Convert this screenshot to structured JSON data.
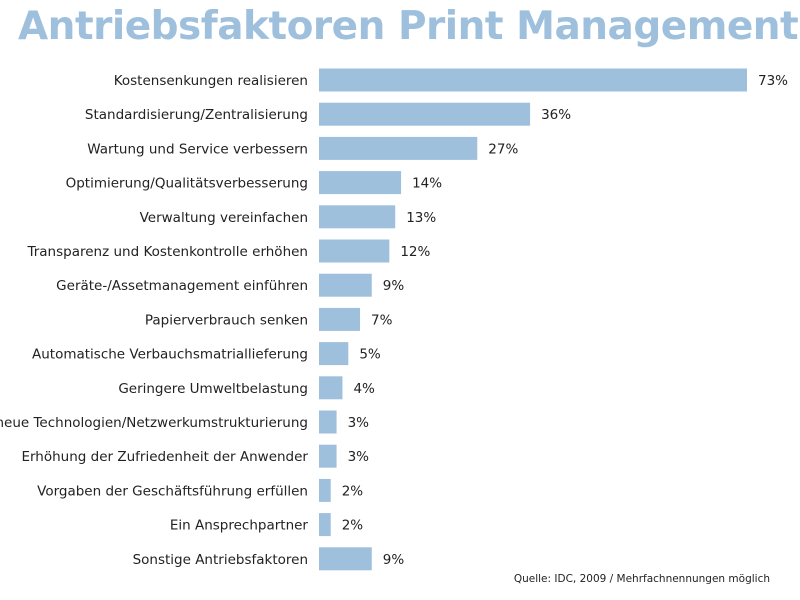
{
  "title": "Antriebsfaktoren Print Management",
  "source_note": "Quelle: IDC, 2009 / Mehrfachnennungen möglich",
  "colors": {
    "title": "#9ec0dd",
    "bar": "#9ec0dd",
    "text": "#222222"
  },
  "chart_data": {
    "type": "bar",
    "orientation": "horizontal",
    "title": "Antriebsfaktoren Print Management",
    "categories": [
      "Kostensenkungen realisieren",
      "Standardisierung/Zentralisierung",
      "Wartung und Service verbessern",
      "Optimierung/Qualitätsverbesserung",
      "Verwaltung vereinfachen",
      "Transparenz und Kostenkontrolle erhöhen",
      "Geräte-/Assetmanagement einführen",
      "Papierverbrauch senken",
      "Automatische Verbauchsmatriallieferung",
      "Geringere Umweltbelastung",
      "neue Technologien/Netzwerkumstrukturierung",
      "Erhöhung der Zufriedenheit der Anwender",
      "Vorgaben der Geschäftsführung erfüllen",
      "Ein Ansprechpartner",
      "Sonstige Antriebsfaktoren"
    ],
    "values": [
      73,
      36,
      27,
      14,
      13,
      12,
      9,
      7,
      5,
      4,
      3,
      3,
      2,
      2,
      9
    ],
    "value_labels": [
      "73%",
      "36%",
      "27%",
      "14%",
      "13%",
      "12%",
      "9%",
      "7%",
      "5%",
      "4%",
      "3%",
      "3%",
      "2%",
      "2%",
      "9%"
    ],
    "unit": "%",
    "xlim": [
      0,
      73
    ],
    "grid": false,
    "legend": "none"
  }
}
